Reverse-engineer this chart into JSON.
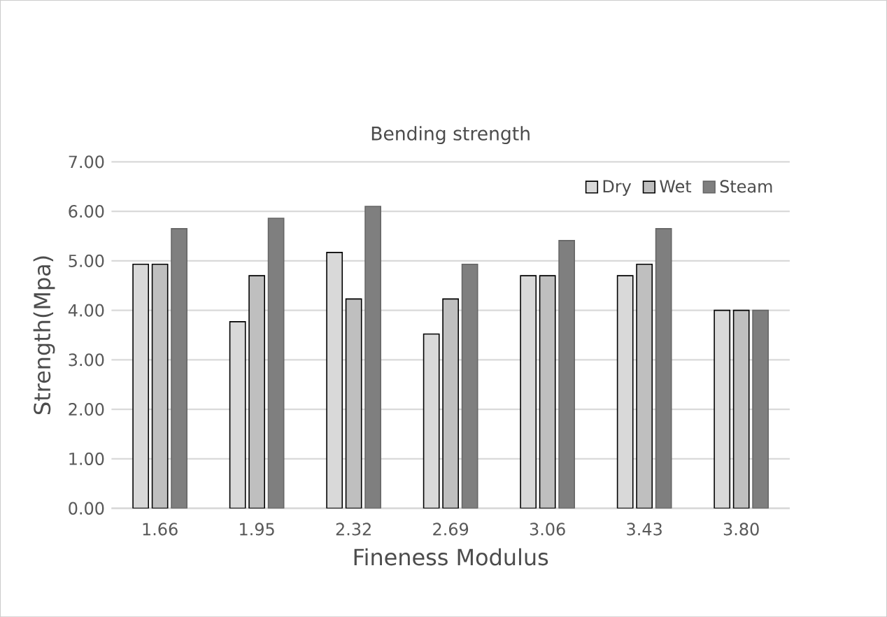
{
  "chart_data": {
    "type": "bar",
    "title": "Bending strength",
    "xlabel": "Fineness Modulus",
    "ylabel": "Strength(Mpa)",
    "categories": [
      "1.66",
      "1.95",
      "2.32",
      "2.69",
      "3.06",
      "3.43",
      "3.80"
    ],
    "series": [
      {
        "name": "Dry",
        "color": "#d9d9d9",
        "values": [
          4.93,
          3.77,
          5.17,
          3.52,
          4.7,
          4.7,
          4.0
        ]
      },
      {
        "name": "Wet",
        "color": "#bfbfbf",
        "values": [
          4.93,
          4.7,
          4.23,
          4.23,
          4.7,
          4.93,
          4.0
        ]
      },
      {
        "name": "Steam",
        "color": "#7f7f7f",
        "values": [
          5.65,
          5.86,
          6.1,
          4.93,
          5.41,
          5.65,
          4.0
        ]
      }
    ],
    "ylim": [
      0,
      7
    ],
    "yticks": [
      {
        "value": 0,
        "label": "0.00"
      },
      {
        "value": 1,
        "label": "1.00"
      },
      {
        "value": 2,
        "label": "2.00"
      },
      {
        "value": 3,
        "label": "3.00"
      },
      {
        "value": 4,
        "label": "4.00"
      },
      {
        "value": 5,
        "label": "5.00"
      },
      {
        "value": 6,
        "label": "6.00"
      },
      {
        "value": 7,
        "label": "7.00"
      }
    ],
    "grid": "y",
    "legend": "top right"
  }
}
